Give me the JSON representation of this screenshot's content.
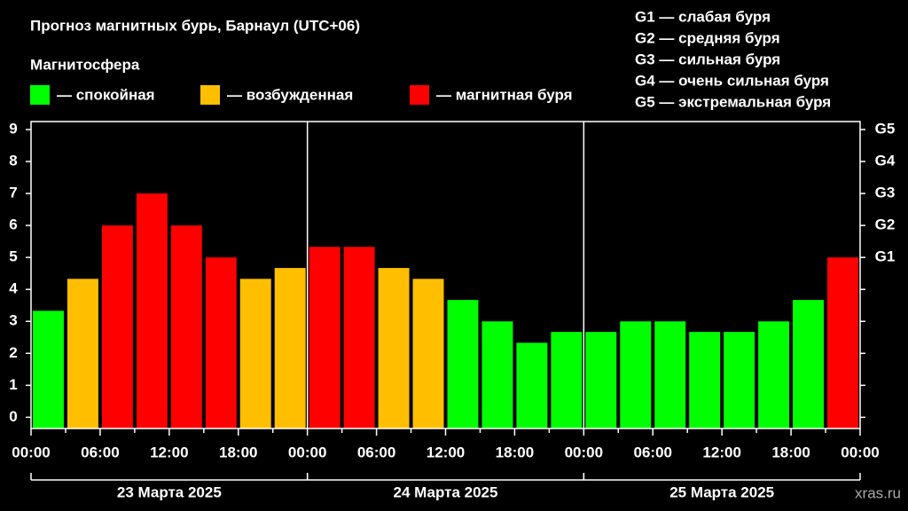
{
  "chart_data": {
    "type": "bar",
    "title": "Прогноз магнитных бурь, Барнаул (UTC+06)",
    "legend_title": "Магнитосфера",
    "legend": [
      {
        "label": "— спокойная",
        "color": "#00ff00"
      },
      {
        "label": "— возбужденная",
        "color": "#ffbf00"
      },
      {
        "label": "— магнитная буря",
        "color": "#ff0000"
      }
    ],
    "g_scale": [
      "G1 — слабая буря",
      "G2 — средняя буря",
      "G3 — сильная буря",
      "G4 — очень сильная буря",
      "G5 — экстремальная буря"
    ],
    "values": [
      3.33,
      4.33,
      6,
      7,
      6,
      5,
      4.33,
      4.67,
      5.33,
      5.33,
      4.67,
      4.33,
      3.67,
      3,
      2.33,
      2.67,
      2.67,
      3,
      3,
      2.67,
      2.67,
      3,
      3.67,
      5
    ],
    "colors": [
      "#00ff00",
      "#ffbf00",
      "#ff0000",
      "#ff0000",
      "#ff0000",
      "#ff0000",
      "#ffbf00",
      "#ffbf00",
      "#ff0000",
      "#ff0000",
      "#ffbf00",
      "#ffbf00",
      "#00ff00",
      "#00ff00",
      "#00ff00",
      "#00ff00",
      "#00ff00",
      "#00ff00",
      "#00ff00",
      "#00ff00",
      "#00ff00",
      "#00ff00",
      "#00ff00",
      "#ff0000"
    ],
    "ylim": [
      -0.35,
      9.25
    ],
    "yticks": [
      0,
      1,
      2,
      3,
      4,
      5,
      6,
      7,
      8,
      9
    ],
    "y2ticks": [
      {
        "value": 5,
        "label": "G1"
      },
      {
        "value": 6,
        "label": "G2"
      },
      {
        "value": 7,
        "label": "G3"
      },
      {
        "value": 8,
        "label": "G4"
      },
      {
        "value": 9,
        "label": "G5"
      }
    ],
    "xlim": [
      0,
      24
    ],
    "xticks": [
      {
        "value": 0,
        "label": "00:00"
      },
      {
        "value": 2,
        "label": "06:00"
      },
      {
        "value": 4,
        "label": "12:00"
      },
      {
        "value": 6,
        "label": "18:00"
      },
      {
        "value": 8,
        "label": "00:00"
      },
      {
        "value": 10,
        "label": "06:00"
      },
      {
        "value": 12,
        "label": "12:00"
      },
      {
        "value": 14,
        "label": "18:00"
      },
      {
        "value": 16,
        "label": "00:00"
      },
      {
        "value": 18,
        "label": "06:00"
      },
      {
        "value": 20,
        "label": "12:00"
      },
      {
        "value": 22,
        "label": "18:00"
      },
      {
        "value": 24,
        "label": "00:00"
      }
    ],
    "days": [
      "23 Марта 2025",
      "24 Марта 2025",
      "25 Марта 2025"
    ],
    "watermark": "xras.ru"
  }
}
